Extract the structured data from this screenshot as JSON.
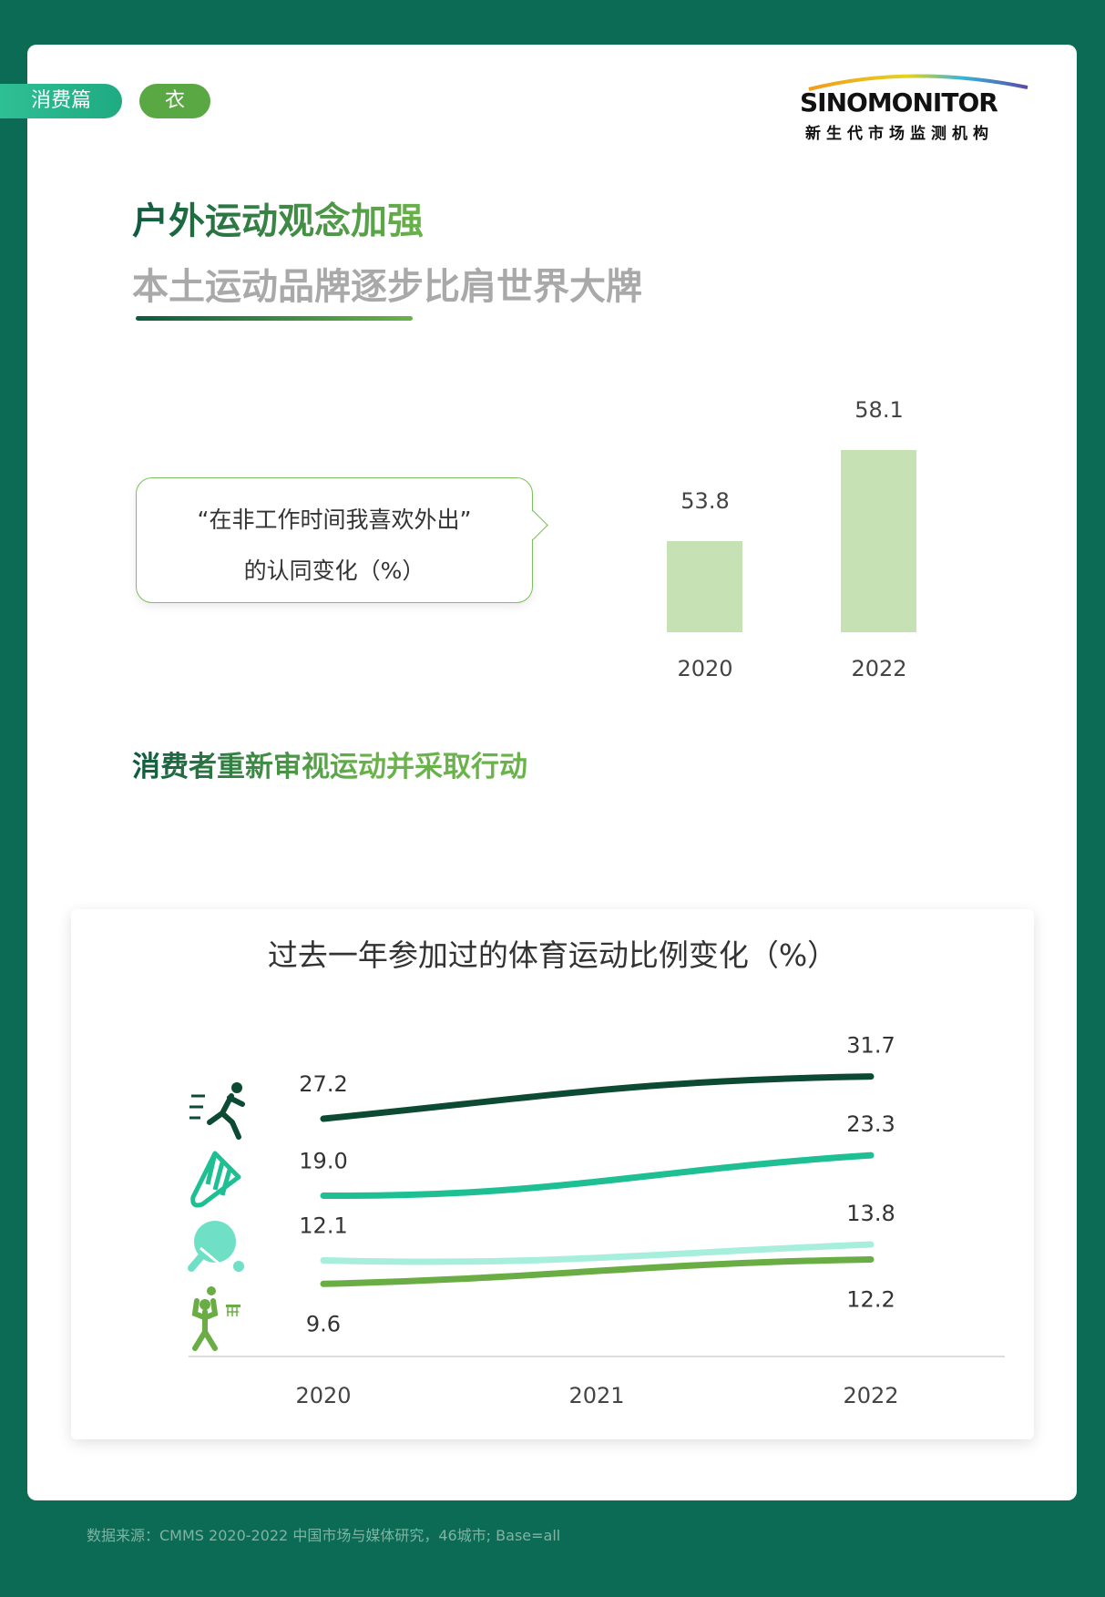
{
  "tags": {
    "section": "消费篇",
    "category": "衣"
  },
  "logo": {
    "name": "SINOMONITOR",
    "tagline": "新生代市场监测机构"
  },
  "title": {
    "line1": "户外运动观念加强",
    "line2": "本土运动品牌逐步比肩世界大牌"
  },
  "bubble": {
    "line1": "“在非工作时间我喜欢外出”",
    "line2": "的认同变化（%）"
  },
  "section2_heading": "消费者重新审视运动并采取行动",
  "colors": {
    "background": "#0b6b55",
    "bar": "#c6e2b4",
    "running": "#0d4a34",
    "badminton": "#1fbf94",
    "table_tennis": "#a8eedd",
    "basketball": "#6aad45"
  },
  "chart_data": [
    {
      "type": "bar",
      "categories": [
        "2020",
        "2022"
      ],
      "values": [
        53.8,
        58.1
      ],
      "title": "“在非工作时间我喜欢外出”的认同变化（%）"
    },
    {
      "type": "line",
      "title": "过去一年参加过的体育运动比例变化（%）",
      "categories": [
        "2020",
        "2021",
        "2022"
      ],
      "series": [
        {
          "icon": "running-icon",
          "color": "#0d4a34",
          "values": [
            27.2,
            null,
            31.7
          ]
        },
        {
          "icon": "badminton-icon",
          "color": "#1fbf94",
          "values": [
            19.0,
            null,
            23.3
          ]
        },
        {
          "icon": "table-tennis-icon",
          "color": "#a8eedd",
          "values": [
            12.1,
            null,
            13.8
          ]
        },
        {
          "icon": "basketball-icon",
          "color": "#6aad45",
          "values": [
            9.6,
            null,
            12.2
          ]
        }
      ]
    }
  ],
  "footer": "数据来源：CMMS 2020-2022 中国市场与媒体研究，46城市; Base=all"
}
